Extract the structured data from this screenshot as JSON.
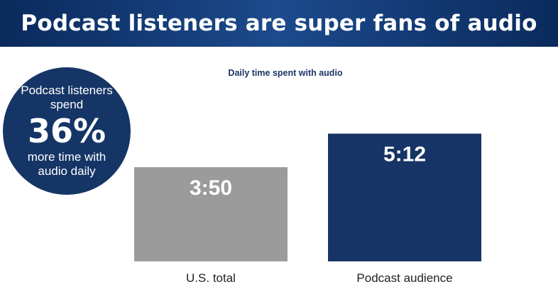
{
  "header": {
    "title": "Podcast listeners are super fans of audio"
  },
  "callout": {
    "top_text": "Podcast listeners spend",
    "percent": "36%",
    "bottom_text": "more time with audio daily"
  },
  "chart_data": {
    "type": "bar",
    "title": "Daily time spent with audio",
    "categories": [
      "U.S. total",
      "Podcast audience"
    ],
    "values": [
      230,
      312
    ],
    "value_labels": [
      "3:50",
      "5:12"
    ],
    "units": "minutes",
    "ylim": [
      0,
      400
    ],
    "colors": [
      "#9b9b9b",
      "#163465"
    ],
    "grid": false,
    "legend": "none"
  }
}
